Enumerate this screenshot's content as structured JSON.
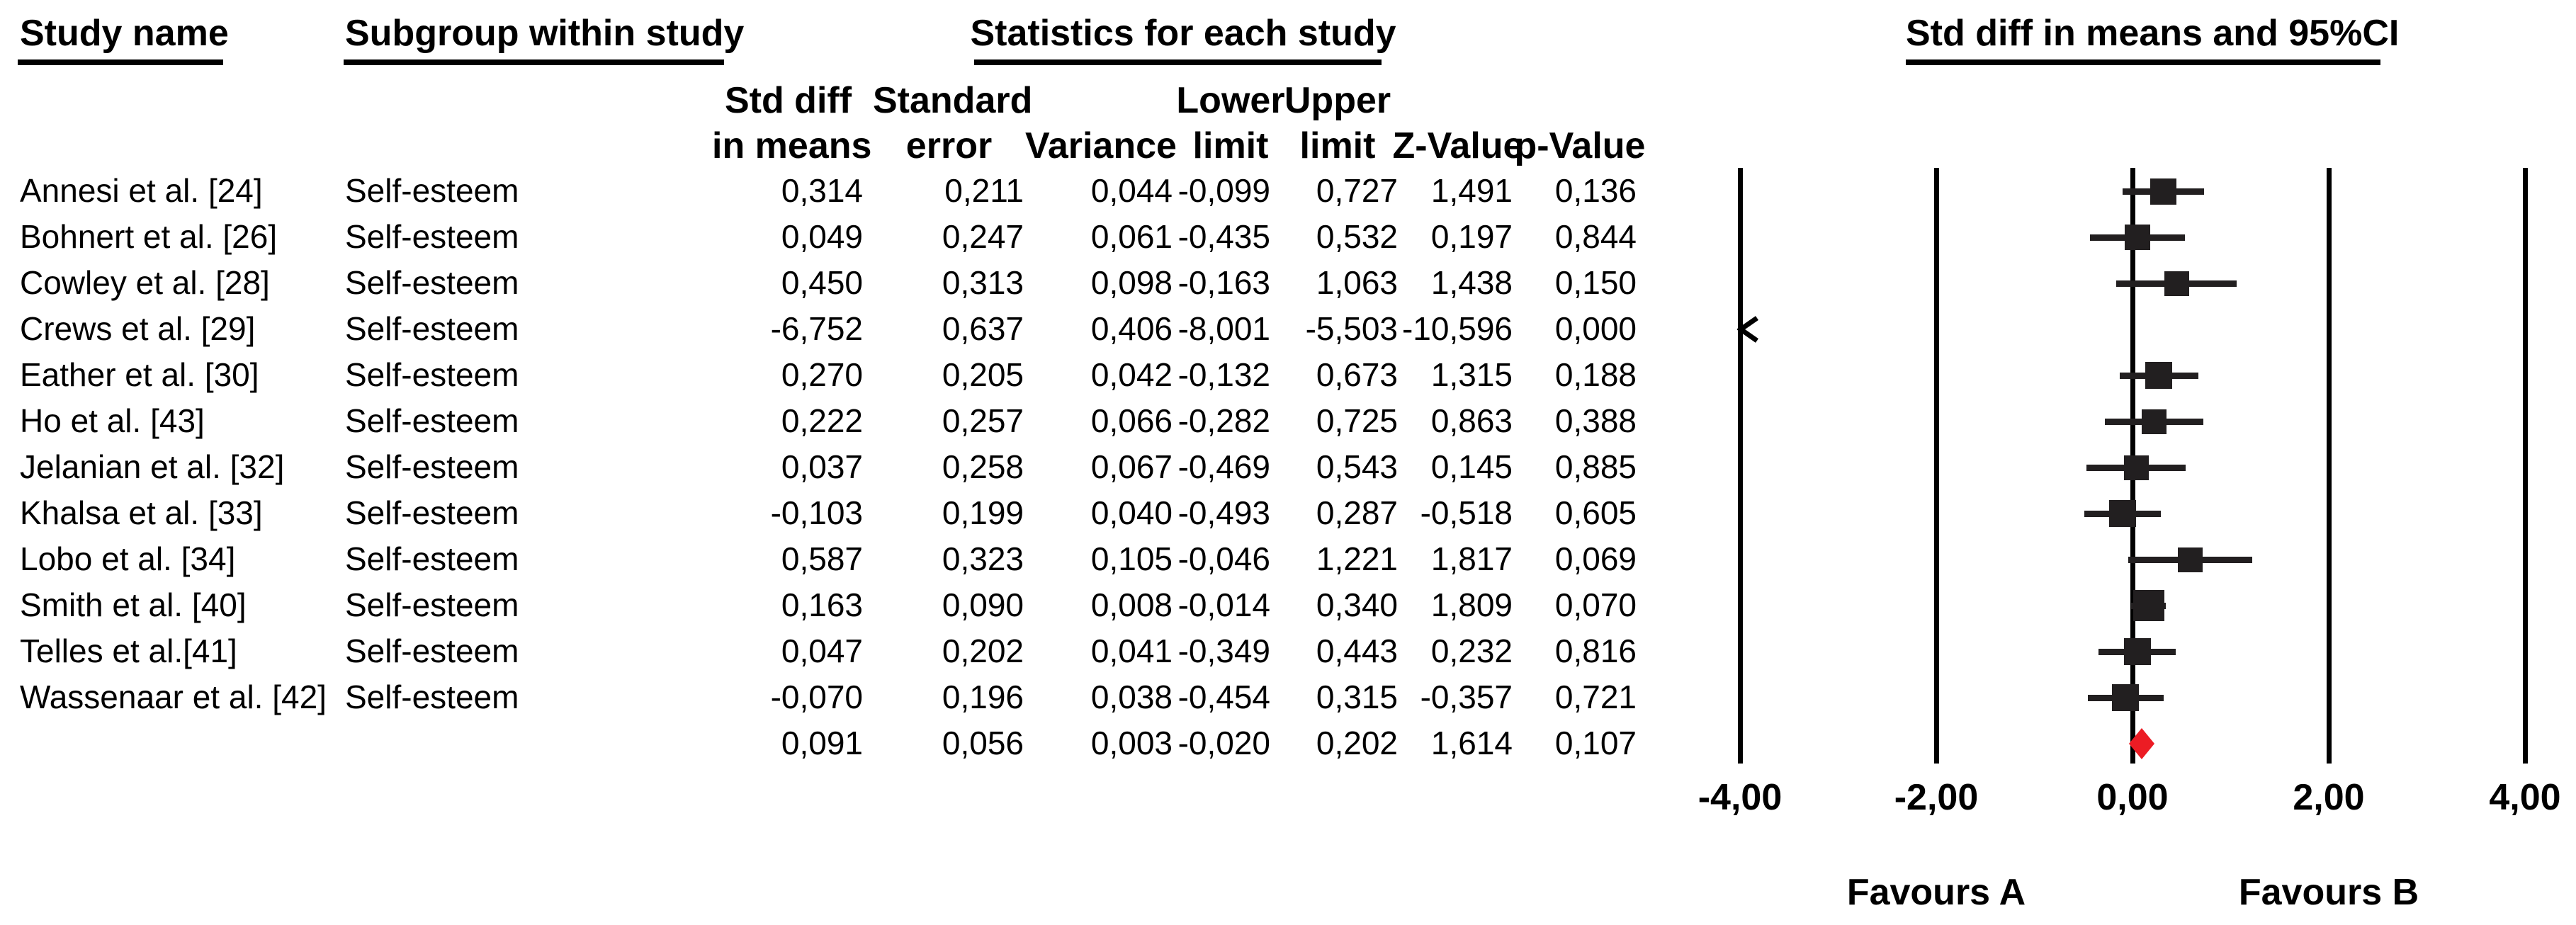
{
  "headers": {
    "study": "Study name",
    "subgroup": "Subgroup within study",
    "stats": "Statistics for each study",
    "plot": "Std diff in means and 95%CI"
  },
  "stat_columns": [
    {
      "line1": "Std diff",
      "line2": "in means"
    },
    {
      "line1": "Standard",
      "line2": "error"
    },
    {
      "line1": "",
      "line2": "Variance"
    },
    {
      "line1": "Lower",
      "line2": "limit"
    },
    {
      "line1": "Upper",
      "line2": "limit"
    },
    {
      "line1": "",
      "line2": "Z-Value"
    },
    {
      "line1": "",
      "line2": "p-Value"
    }
  ],
  "table": {
    "rows": [
      {
        "study": "Annesi et al. [24]",
        "subgroup": "Self-esteem",
        "values": [
          "0,314",
          "0,211",
          "0,044",
          "-0,099",
          "0,727",
          "1,491",
          "0,136"
        ]
      },
      {
        "study": "Bohnert et al. [26]",
        "subgroup": "Self-esteem",
        "values": [
          "0,049",
          "0,247",
          "0,061",
          "-0,435",
          "0,532",
          "0,197",
          "0,844"
        ]
      },
      {
        "study": "Cowley et al. [28]",
        "subgroup": "Self-esteem",
        "values": [
          "0,450",
          "0,313",
          "0,098",
          "-0,163",
          "1,063",
          "1,438",
          "0,150"
        ]
      },
      {
        "study": "Crews et al. [29]",
        "subgroup": "Self-esteem",
        "values": [
          "-6,752",
          "0,637",
          "0,406",
          "-8,001",
          "-5,503",
          "-10,596",
          "0,000"
        ]
      },
      {
        "study": "Eather et al. [30]",
        "subgroup": "Self-esteem",
        "values": [
          "0,270",
          "0,205",
          "0,042",
          "-0,132",
          "0,673",
          "1,315",
          "0,188"
        ]
      },
      {
        "study": "Ho et al. [43]",
        "subgroup": "Self-esteem",
        "values": [
          "0,222",
          "0,257",
          "0,066",
          "-0,282",
          "0,725",
          "0,863",
          "0,388"
        ]
      },
      {
        "study": "Jelanian et al. [32]",
        "subgroup": "Self-esteem",
        "values": [
          "0,037",
          "0,258",
          "0,067",
          "-0,469",
          "0,543",
          "0,145",
          "0,885"
        ]
      },
      {
        "study": "Khalsa et al. [33]",
        "subgroup": "Self-esteem",
        "values": [
          "-0,103",
          "0,199",
          "0,040",
          "-0,493",
          "0,287",
          "-0,518",
          "0,605"
        ]
      },
      {
        "study": "Lobo et al. [34]",
        "subgroup": "Self-esteem",
        "values": [
          "0,587",
          "0,323",
          "0,105",
          "-0,046",
          "1,221",
          "1,817",
          "0,069"
        ]
      },
      {
        "study": "Smith et al. [40]",
        "subgroup": "Self-esteem",
        "values": [
          "0,163",
          "0,090",
          "0,008",
          "-0,014",
          "0,340",
          "1,809",
          "0,070"
        ]
      },
      {
        "study": "Telles et al.[41]",
        "subgroup": "Self-esteem",
        "values": [
          "0,047",
          "0,202",
          "0,041",
          "-0,349",
          "0,443",
          "0,232",
          "0,816"
        ]
      },
      {
        "study": "Wassenaar et al. [42]",
        "subgroup": "Self-esteem",
        "values": [
          "-0,070",
          "0,196",
          "0,038",
          "-0,454",
          "0,315",
          "-0,357",
          "0,721"
        ]
      },
      {
        "study": "",
        "subgroup": "",
        "values": [
          "0,091",
          "0,056",
          "0,003",
          "-0,020",
          "0,202",
          "1,614",
          "0,107"
        ]
      }
    ]
  },
  "chart_data": {
    "type": "scatter",
    "subtype": "forest-plot",
    "title": "Std diff in means and 95%CI",
    "xlim": [
      -4,
      4
    ],
    "ticks": [
      -4,
      -2,
      0,
      2,
      4
    ],
    "tick_labels": [
      "-4,00",
      "-2,00",
      "0,00",
      "2,00",
      "4,00"
    ],
    "favours_left": "Favours A",
    "favours_right": "Favours B",
    "colors": {
      "ink": "#000000",
      "marker": "#221f20",
      "summary": "#ec1c24"
    },
    "points": [
      {
        "study": "Annesi et al. [24]",
        "est": 0.314,
        "lo": -0.099,
        "hi": 0.727,
        "size": 37
      },
      {
        "study": "Bohnert et al. [26]",
        "est": 0.049,
        "lo": -0.435,
        "hi": 0.532,
        "size": 36
      },
      {
        "study": "Cowley et al. [28]",
        "est": 0.45,
        "lo": -0.163,
        "hi": 1.063,
        "size": 35
      },
      {
        "study": "Crews et al. [29]",
        "est": -6.752,
        "lo": -8.001,
        "hi": -5.503,
        "size": 0,
        "off_scale_left": true
      },
      {
        "study": "Eather et al. [30]",
        "est": 0.27,
        "lo": -0.132,
        "hi": 0.673,
        "size": 38
      },
      {
        "study": "Ho et al. [43]",
        "est": 0.222,
        "lo": -0.282,
        "hi": 0.725,
        "size": 35
      },
      {
        "study": "Jelanian et al. [32]",
        "est": 0.037,
        "lo": -0.469,
        "hi": 0.543,
        "size": 35
      },
      {
        "study": "Khalsa et al. [33]",
        "est": -0.103,
        "lo": -0.493,
        "hi": 0.287,
        "size": 38
      },
      {
        "study": "Lobo et al. [34]",
        "est": 0.587,
        "lo": -0.046,
        "hi": 1.221,
        "size": 35
      },
      {
        "study": "Smith et al. [40]",
        "est": 0.163,
        "lo": -0.014,
        "hi": 0.34,
        "size": 44
      },
      {
        "study": "Telles et al.[41]",
        "est": 0.047,
        "lo": -0.349,
        "hi": 0.443,
        "size": 38
      },
      {
        "study": "Wassenaar et al. [42]",
        "est": -0.07,
        "lo": -0.454,
        "hi": 0.315,
        "size": 38
      }
    ],
    "summary": {
      "est": 0.091,
      "lo": -0.02,
      "hi": 0.202,
      "marker": "diamond"
    }
  }
}
